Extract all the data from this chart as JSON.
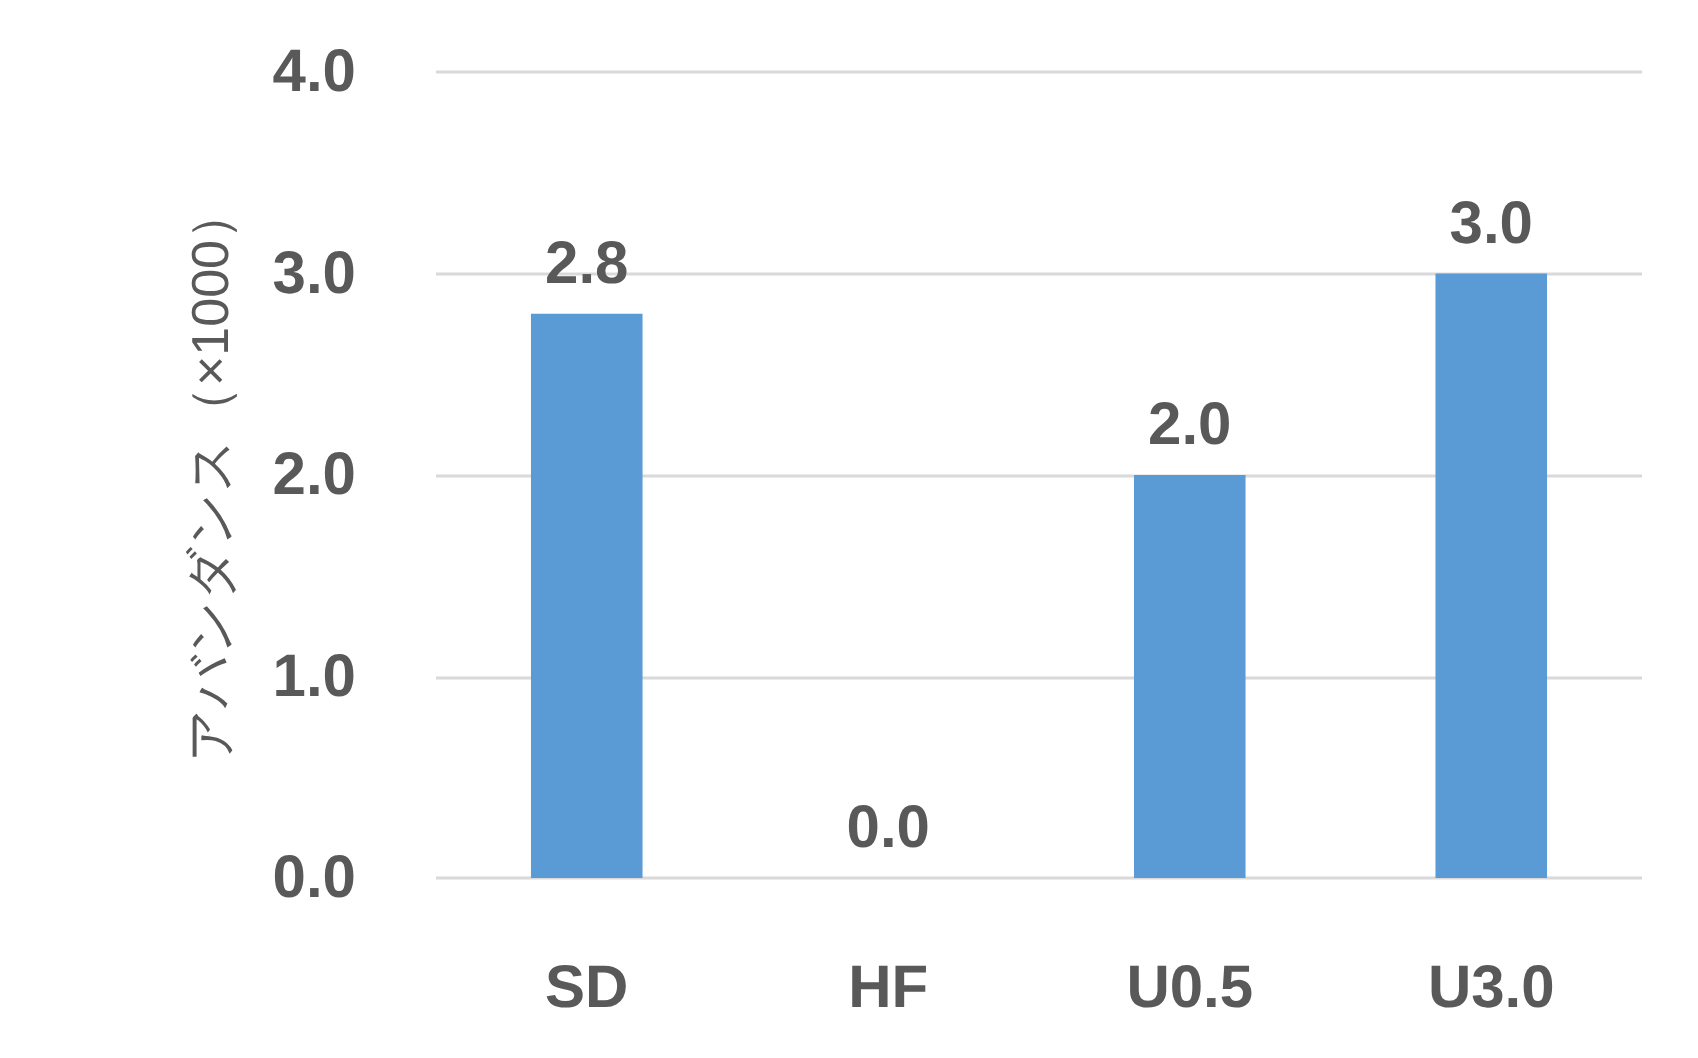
{
  "chart_data": {
    "type": "bar",
    "ylabel": "アバンダンス（×1000）",
    "categories": [
      "SD",
      "HF",
      "U0.5",
      "U3.0"
    ],
    "values": [
      2.8,
      0,
      2.0,
      3.0
    ],
    "value_labels": [
      "2.8",
      "0.0",
      "2.0",
      "3.0"
    ],
    "color": "#5b9bd5",
    "ylim": [
      0,
      4
    ],
    "yticks": [
      {
        "value": 0,
        "label": "0.0"
      },
      {
        "value": 1,
        "label": "1.0"
      },
      {
        "value": 2,
        "label": "2.0"
      },
      {
        "value": 3,
        "label": "3.0"
      },
      {
        "value": 4,
        "label": "4.0"
      }
    ],
    "grid": "y"
  }
}
